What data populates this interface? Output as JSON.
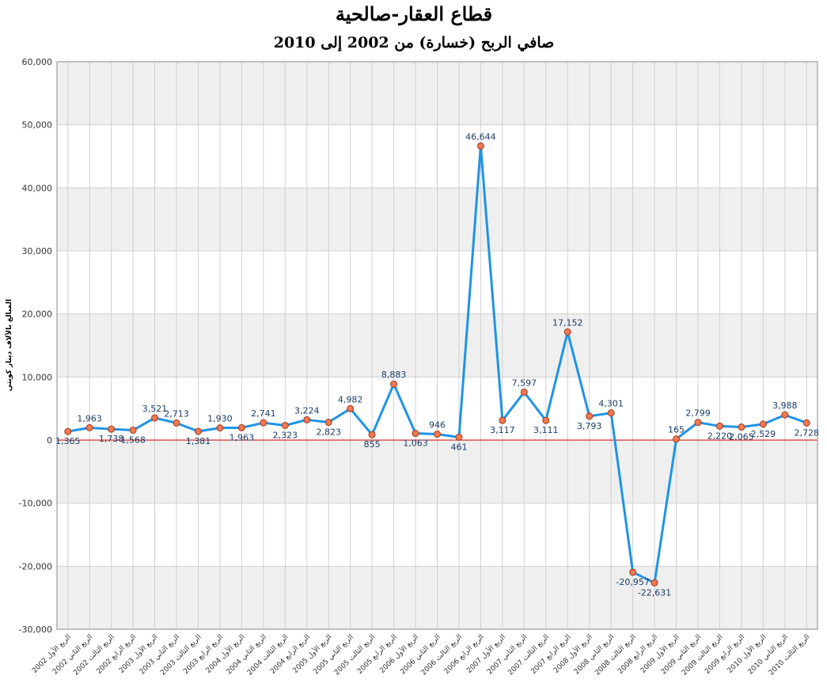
{
  "chart_data": {
    "type": "line",
    "title": "قطاع العقار-صالحية",
    "subtitle": "صافي الربح (خسارة) من 2002 إلى 2010",
    "y_label": "المبالغ بالآلاف دينار كويتي",
    "categories": [
      "الربع الأول 2002",
      "الربع الثاني 2002",
      "الربع الثالث 2002",
      "الربع الرابع 2002",
      "الربع الأول 2003",
      "الربع الثاني 2003",
      "الربع الثالث 2003",
      "الربع الرابع 2003",
      "الربع الأول 2004",
      "الربع الثاني 2004",
      "الربع الثالث 2004",
      "الربع الرابع 2004",
      "الربع الأول 2005",
      "الربع الثاني 2005",
      "الربع الثالث 2005",
      "الربع الرابع 2005",
      "الربع الأول 2006",
      "الربع الثاني 2006",
      "الربع الثالث 2006",
      "الربع الرابع 2006",
      "الربع الأول 2007",
      "الربع الثاني 2007",
      "الربع الثالث 2007",
      "الربع الرابع 2007",
      "الربع الأول 2008",
      "الربع الثاني 2008",
      "الربع الثالث 2008",
      "الربع الرابع 2008",
      "الربع الأول 2009",
      "الربع الثاني 2009",
      "الربع الثالث 2009",
      "الربع الرابع 2009",
      "الربع الأول 2010",
      "الربع الثاني 2010",
      "الربع الثالث 2010"
    ],
    "values": [
      1365,
      1963,
      1738,
      1568,
      3521,
      2713,
      1381,
      1930,
      1963,
      2741,
      2323,
      3224,
      2823,
      4982,
      855,
      8883,
      1063,
      946,
      461,
      46644,
      3117,
      7597,
      3111,
      17152,
      3793,
      4301,
      -20957,
      -22631,
      165,
      2799,
      2220,
      2065,
      2529,
      3988,
      2728
    ],
    "value_labels": [
      "1,365",
      "1,963",
      "1,738",
      "1,568",
      "3,521",
      "2,713",
      "1,381",
      "1,930",
      "1,963",
      "2,741",
      "2,323",
      "3,224",
      "2,823",
      "4,982",
      "855",
      "8,883",
      "1,063",
      "946",
      "461",
      "46,644",
      "3,117",
      "7,597",
      "3,111",
      "17,152",
      "3,793",
      "4,301",
      "-20,957",
      "-22,631",
      "165",
      "2,799",
      "2,220",
      "2,065",
      "2,529",
      "3,988",
      "2,728"
    ],
    "color": "#1f93e6",
    "marker_color": "#f07850",
    "baseline_color": "#cc0000",
    "ylim": [
      -30000,
      60000
    ],
    "yticks": [
      {
        "value": -30000,
        "label": "-30,000"
      },
      {
        "value": -20000,
        "label": "-20,000"
      },
      {
        "value": -10000,
        "label": "-10,000"
      },
      0,
      {
        "value": 10000,
        "label": "10,000"
      },
      {
        "value": 20000,
        "label": "20,000"
      },
      {
        "value": 30000,
        "label": "30,000"
      },
      {
        "value": 40000,
        "label": "40,000"
      },
      {
        "value": 50000,
        "label": "50,000"
      },
      {
        "value": 60000,
        "label": "60,000"
      }
    ],
    "grid": true
  }
}
